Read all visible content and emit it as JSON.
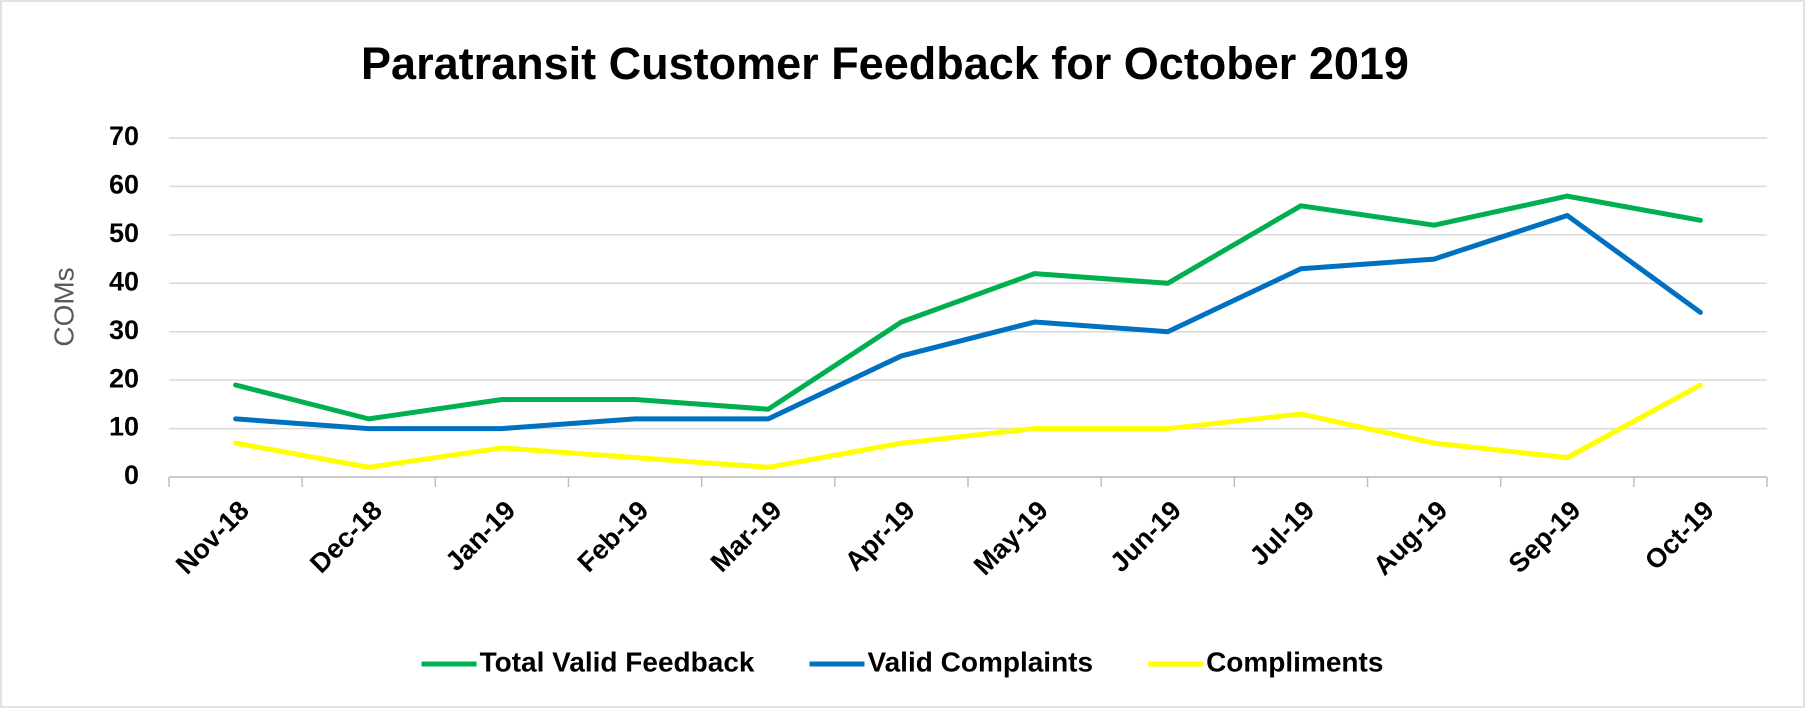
{
  "chart_data": {
    "type": "line",
    "title": "Paratransit Customer Feedback for October 2019",
    "ylabel": "COMs",
    "categories": [
      "Nov-18",
      "Dec-18",
      "Jan-19",
      "Feb-19",
      "Mar-19",
      "Apr-19",
      "May-19",
      "Jun-19",
      "Jul-19",
      "Aug-19",
      "Sep-19",
      "Oct-19"
    ],
    "series": [
      {
        "name": "Total Valid Feedback",
        "color": "#00b050",
        "values": [
          19,
          12,
          16,
          16,
          14,
          32,
          42,
          40,
          56,
          52,
          58,
          53
        ]
      },
      {
        "name": "Valid Complaints",
        "color": "#0070c0",
        "values": [
          12,
          10,
          10,
          12,
          12,
          25,
          32,
          30,
          43,
          45,
          54,
          34
        ]
      },
      {
        "name": "Compliments",
        "color": "#ffff00",
        "values": [
          7,
          2,
          6,
          4,
          2,
          7,
          10,
          10,
          13,
          7,
          4,
          19
        ]
      }
    ],
    "ylim": [
      0,
      70
    ],
    "yticks": [
      0,
      10,
      20,
      30,
      40,
      50,
      60,
      70
    ],
    "grid": true,
    "legend": "bottom"
  }
}
